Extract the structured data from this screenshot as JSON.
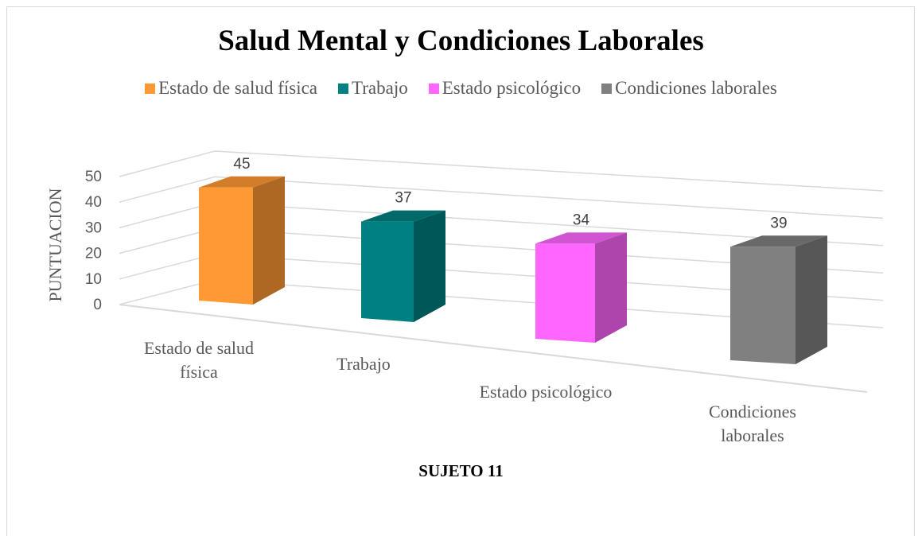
{
  "chart_data": {
    "type": "bar3d",
    "title": "Salud Mental y Condiciones Laborales",
    "y_label": "PUNTUACION",
    "x_label": "SUJETO 11",
    "categories": [
      "Estado de salud física",
      "Trabajo",
      "Estado psicológico",
      "Condiciones laborales"
    ],
    "values": [
      45,
      37,
      34,
      39
    ],
    "colors": [
      "#ff9933",
      "#008080",
      "#ff66ff",
      "#808080"
    ],
    "ylim": [
      0,
      50
    ],
    "yticks": [
      0,
      10,
      20,
      30,
      40,
      50
    ],
    "grid": true
  }
}
